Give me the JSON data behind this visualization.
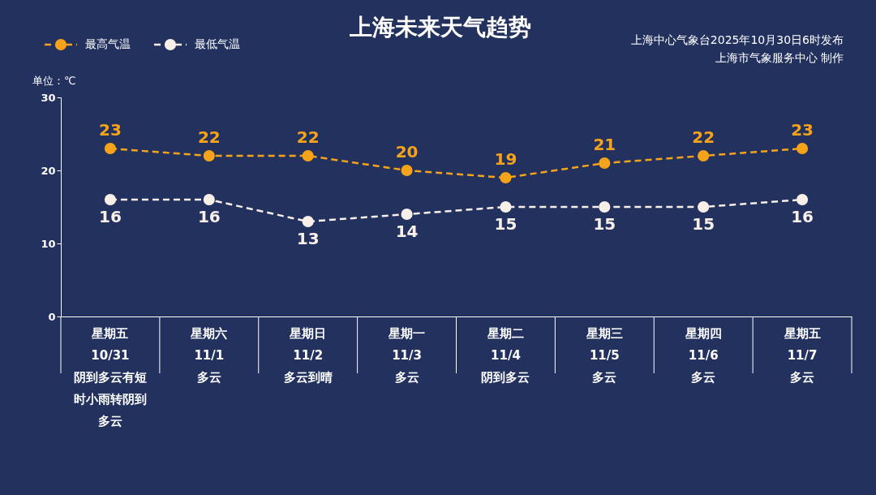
{
  "chart_data": {
    "type": "line",
    "title": "上海未来天气趋势",
    "ylabel": "单位：℃",
    "categories": [
      "星期五\n10/31\n阴到多云有短时小雨转阴到多云",
      "星期六\n11/1\n多云",
      "星期日\n11/2\n多云到晴",
      "星期一\n11/3\n多云",
      "星期二\n11/4\n阴到多云",
      "星期三\n11/5\n多云",
      "星期四\n11/6\n多云",
      "星期五\n11/7\n多云"
    ],
    "series": [
      {
        "name": "最高气温",
        "color": "#f5a31a",
        "values": [
          23,
          22,
          22,
          20,
          19,
          21,
          22,
          23
        ]
      },
      {
        "name": "最低气温",
        "color": "#f7efe8",
        "values": [
          16,
          16,
          13,
          14,
          15,
          15,
          15,
          16
        ]
      }
    ],
    "ylim": [
      0,
      30
    ],
    "yticks": [
      0,
      10,
      20,
      30
    ],
    "annotations": [
      "上海中心气象台2025年10月30日6时发布",
      "上海市气象服务中心 制作"
    ],
    "data_labels": true,
    "legend": "top left",
    "marker": "circle",
    "line_style": "dashed",
    "grid": false
  }
}
